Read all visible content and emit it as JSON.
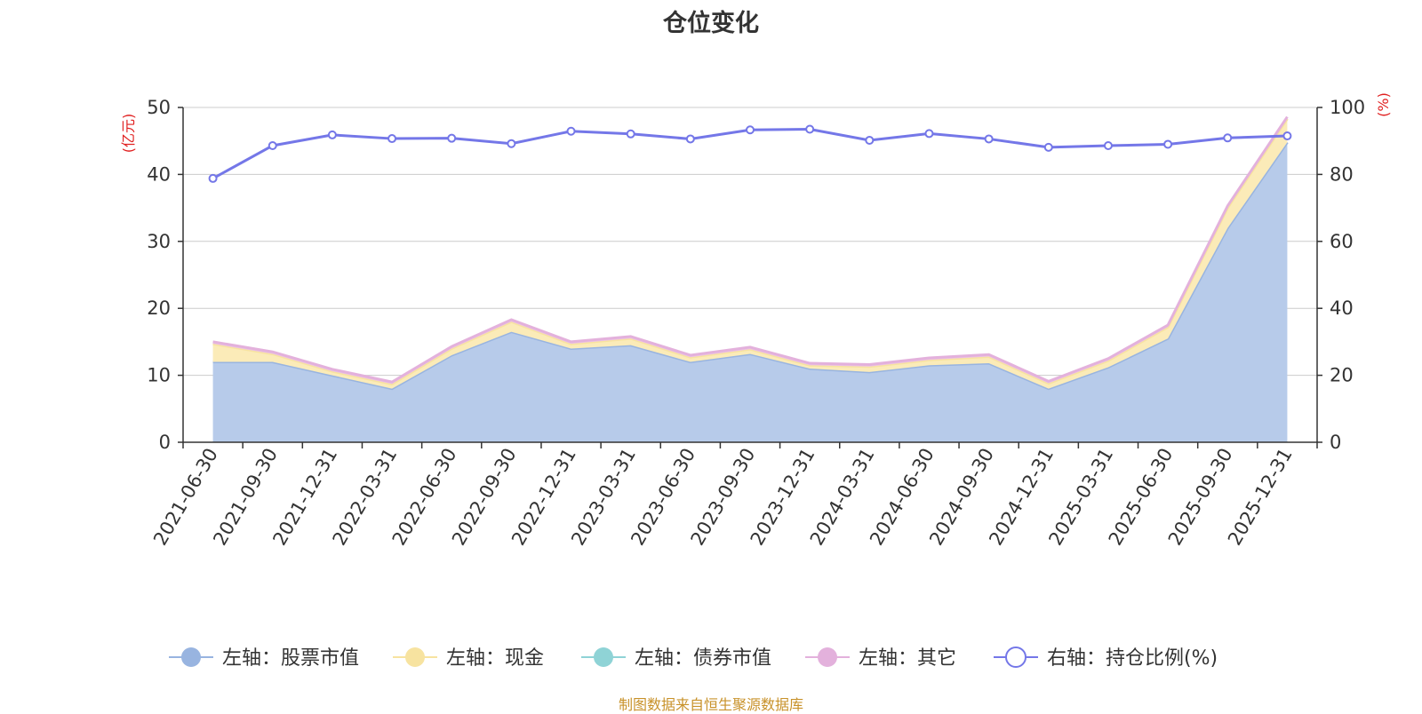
{
  "chart_data": {
    "type": "area",
    "title": "仓位变化",
    "left_axis_label": "(亿元)",
    "right_axis_label": "(%)",
    "left_ylim": [
      0,
      50
    ],
    "left_ticks": [
      0,
      10,
      20,
      30,
      40,
      50
    ],
    "right_ylim": [
      0,
      100
    ],
    "right_ticks": [
      0,
      20,
      40,
      60,
      80,
      100
    ],
    "grid": true,
    "legend_position": "bottom",
    "categories": [
      "2021-06-30",
      "2021-09-30",
      "2021-12-31",
      "2022-03-31",
      "2022-06-30",
      "2022-09-30",
      "2022-12-31",
      "2023-03-31",
      "2023-06-30",
      "2023-09-30",
      "2023-12-31",
      "2024-03-31",
      "2024-06-30",
      "2024-09-30",
      "2024-12-31",
      "2025-03-31",
      "2025-06-30",
      "2025-09-30",
      "2025-12-31"
    ],
    "series": [
      {
        "name": "左轴：股票市值",
        "axis": "left",
        "kind": "stacked-area",
        "color": "#98b4e0",
        "fill": "#b7cbea",
        "values": [
          12.0,
          12.0,
          10.0,
          8.0,
          13.0,
          16.5,
          14.0,
          14.5,
          12.0,
          13.2,
          11.0,
          10.5,
          11.5,
          11.8,
          8.0,
          11.2,
          15.5,
          32.0,
          44.8
        ]
      },
      {
        "name": "左轴：现金",
        "axis": "left",
        "kind": "stacked-area",
        "color": "#f7e3a0",
        "fill": "#fbebb8",
        "values": [
          2.7,
          1.2,
          0.6,
          0.7,
          1.0,
          1.5,
          0.7,
          1.0,
          0.7,
          0.7,
          0.5,
          0.8,
          0.8,
          1.0,
          0.8,
          1.0,
          1.7,
          3.0,
          3.5
        ]
      },
      {
        "name": "左轴：债券市值",
        "axis": "left",
        "kind": "stacked-area",
        "color": "#8fd3d6",
        "fill": "#9fd8da",
        "values": [
          0,
          0,
          0,
          0,
          0,
          0,
          0,
          0,
          0,
          0,
          0,
          0,
          0,
          0,
          0,
          0,
          0,
          0,
          0
        ]
      },
      {
        "name": "左轴：其它",
        "axis": "left",
        "kind": "stacked-area",
        "color": "#e3b1dc",
        "fill": "#ecc3e6",
        "values": [
          0.3,
          0.3,
          0.3,
          0.3,
          0.3,
          0.3,
          0.3,
          0.3,
          0.3,
          0.3,
          0.3,
          0.3,
          0.3,
          0.3,
          0.3,
          0.3,
          0.3,
          0.3,
          0.3
        ]
      },
      {
        "name": "右轴：持仓比例(%)",
        "axis": "right",
        "kind": "line",
        "color": "#7477e8",
        "values": [
          78.8,
          88.6,
          91.8,
          90.7,
          90.8,
          89.2,
          92.9,
          92.1,
          90.6,
          93.3,
          93.5,
          90.2,
          92.2,
          90.6,
          88.1,
          88.6,
          89.0,
          90.9,
          91.5
        ]
      }
    ]
  },
  "source_note": "制图数据来自恒生聚源数据库"
}
